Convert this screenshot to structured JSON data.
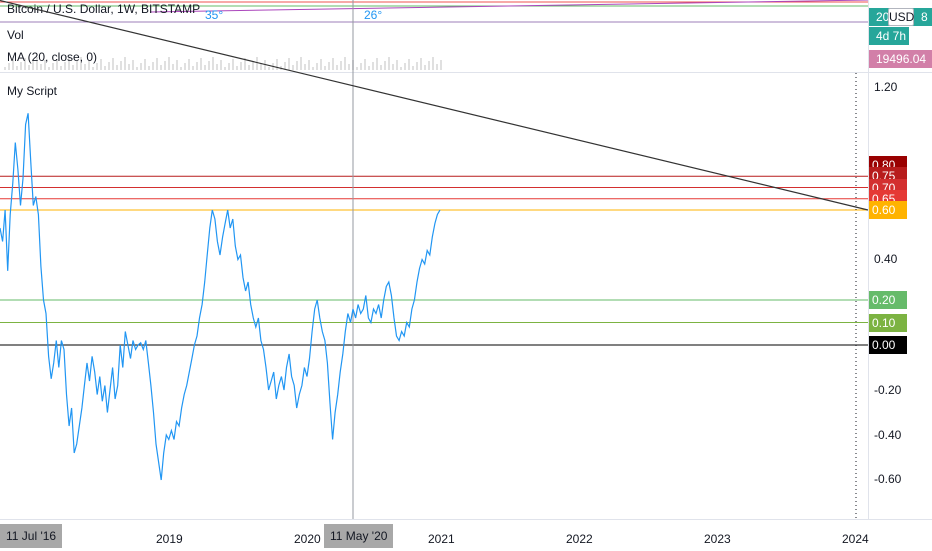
{
  "header": {
    "symbol_title": "Bitcoin / U.S. Dollar, 1W, BITSTAMP",
    "volume_label": "Vol",
    "ma_label": "MA (20, close, 0)",
    "script_title": "My Script",
    "angle_labels": [
      "35°",
      "26°"
    ]
  },
  "price_scale": {
    "currency_button": "USD",
    "price_tag_1": "20",
    "price_tag_1_suffix": "8",
    "countdown": "4d 7h",
    "ma_value": "19496.04"
  },
  "chart_data": {
    "type": "line",
    "title": "My Script",
    "xlabel": "",
    "ylabel": "",
    "ylim": [
      -0.7,
      1.2
    ],
    "y_ticks": [
      "1.20",
      "0.40",
      "-0.20",
      "-0.40",
      "-0.60"
    ],
    "x_ticks": [
      "2019",
      "2020",
      "2021",
      "2022",
      "2023",
      "2024"
    ],
    "cursor_x_label": "11 May '20",
    "start_x_label": "11 Jul '16",
    "series": [
      {
        "values": [
          0.52,
          0.46,
          0.6,
          0.33,
          0.58,
          0.72,
          0.9,
          0.78,
          0.62,
          0.74,
          0.98,
          1.03,
          0.82,
          0.62,
          0.66,
          0.58,
          0.35,
          0.2,
          0.14,
          -0.05,
          -0.15,
          -0.08,
          0.02,
          -0.1,
          0.02,
          -0.02,
          -0.22,
          -0.36,
          -0.28,
          -0.48,
          -0.44,
          -0.36,
          -0.28,
          -0.18,
          -0.08,
          -0.16,
          -0.05,
          -0.12,
          -0.22,
          -0.14,
          -0.25,
          -0.18,
          -0.3,
          -0.2,
          -0.1,
          -0.24,
          -0.18,
          0.0,
          -0.1,
          0.06,
          0.0,
          -0.06,
          0.02,
          -0.02,
          0.0,
          0.01,
          -0.02,
          0.02,
          -0.08,
          -0.18,
          -0.3,
          -0.44,
          -0.52,
          -0.6,
          -0.48,
          -0.4,
          -0.42,
          -0.38,
          -0.42,
          -0.34,
          -0.36,
          -0.28,
          -0.22,
          -0.18,
          -0.12,
          -0.06,
          0.0,
          0.04,
          0.12,
          0.18,
          0.28,
          0.4,
          0.52,
          0.6,
          0.56,
          0.46,
          0.4,
          0.48,
          0.54,
          0.6,
          0.52,
          0.56,
          0.44,
          0.38,
          0.4,
          0.3,
          0.24,
          0.28,
          0.18,
          0.12,
          0.08,
          0.12,
          0.02,
          -0.02,
          -0.1,
          -0.2,
          -0.16,
          -0.12,
          -0.24,
          -0.18,
          -0.14,
          -0.2,
          -0.1,
          -0.04,
          -0.14,
          -0.18,
          -0.28,
          -0.22,
          -0.18,
          -0.1,
          -0.14,
          -0.06,
          0.06,
          0.16,
          0.2,
          0.12,
          0.06,
          0.02,
          -0.08,
          -0.26,
          -0.42,
          -0.3,
          -0.22,
          -0.12,
          -0.04,
          0.06,
          0.14,
          0.1,
          0.16,
          0.12,
          0.18,
          0.14,
          0.16,
          0.22,
          0.12,
          0.1,
          0.16,
          0.14,
          0.18,
          0.12,
          0.2,
          0.26,
          0.28,
          0.22,
          0.12,
          0.04,
          0.02,
          0.06,
          0.04,
          0.1,
          0.08,
          0.16,
          0.2,
          0.28,
          0.34,
          0.38,
          0.36,
          0.42,
          0.4,
          0.48,
          0.54,
          0.58,
          0.6
        ]
      }
    ],
    "trendline": {
      "start": 1.02,
      "end": 0.6
    },
    "levels": [
      {
        "value": 0.8,
        "label": "0.80",
        "color": "#990000"
      },
      {
        "value": 0.75,
        "label": "0.75",
        "color": "#b71c1c"
      },
      {
        "value": 0.7,
        "label": "0.70",
        "color": "#d32f2f"
      },
      {
        "value": 0.65,
        "label": "0.65",
        "color": "#e53935"
      },
      {
        "value": 0.6,
        "label": "0.60",
        "color": "#ffb300"
      },
      {
        "value": 0.2,
        "label": "0.20",
        "color": "#66bb6a"
      },
      {
        "value": 0.1,
        "label": "0.10",
        "color": "#7cb342"
      },
      {
        "value": 0.0,
        "label": "0.00",
        "color": "#000000"
      }
    ],
    "line_color": "#2196f3"
  },
  "colors": {
    "ma_badge": "#d27fa8",
    "countdown_badge": "#26a69a",
    "price_badge": "#26a69a"
  }
}
